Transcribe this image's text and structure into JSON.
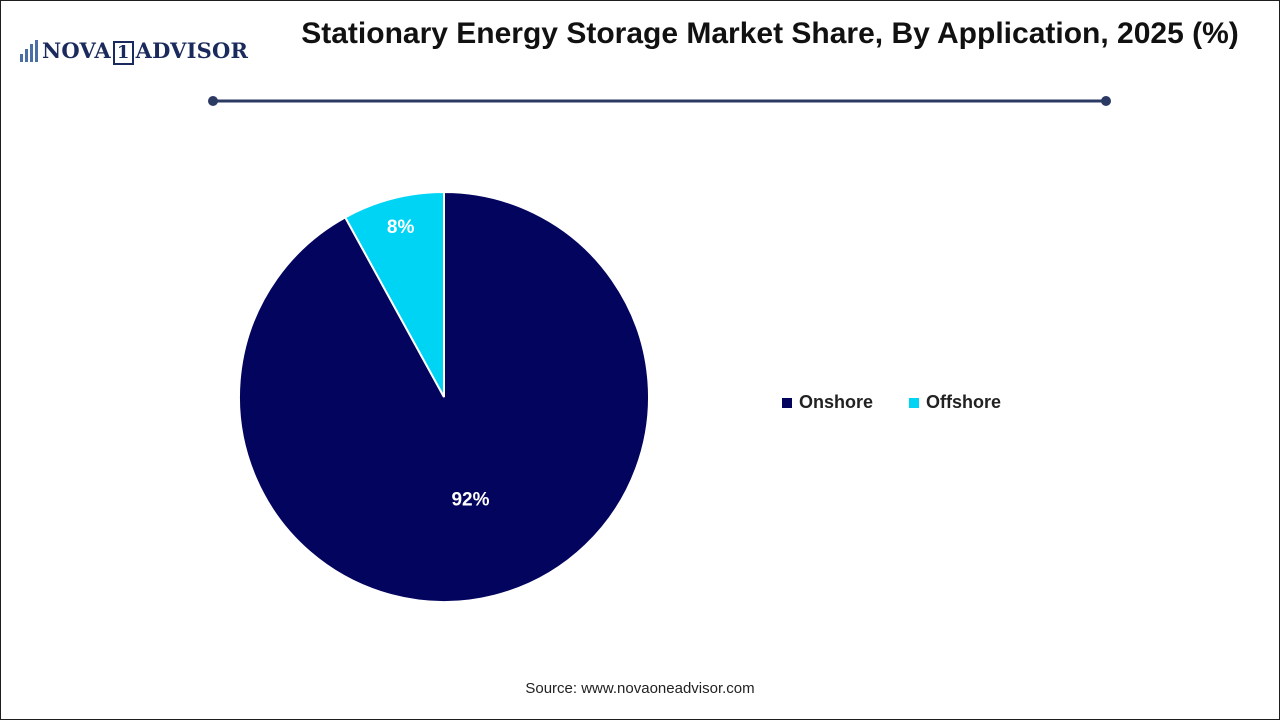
{
  "logo": {
    "icon": "bar-chart-logo-icon",
    "text_before": "NOVA",
    "text_number": "1",
    "text_after": "ADVISOR"
  },
  "title": "Stationary Energy Storage Market Share, By Application, 2025 (%)",
  "chart_data": {
    "type": "pie",
    "title": "Stationary Energy Storage Market Share, By Application, 2025 (%)",
    "categories": [
      "Onshore",
      "Offshore"
    ],
    "values": [
      92,
      8
    ],
    "data_labels": [
      "92%",
      "8%"
    ],
    "colors": [
      "#03045e",
      "#00d4f5"
    ],
    "legend_placement": "right"
  },
  "source": "Source: www.novaoneadvisor.com"
}
